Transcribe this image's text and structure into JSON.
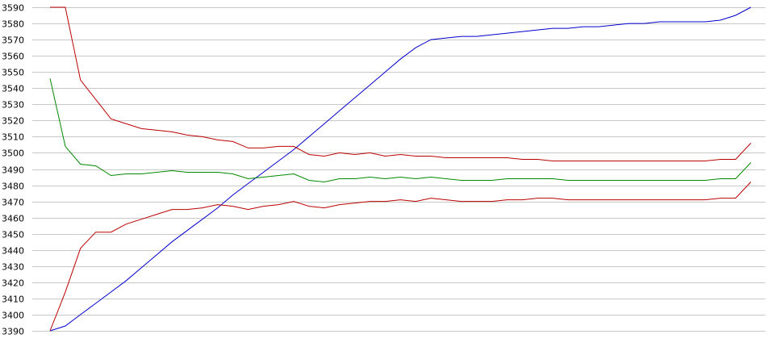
{
  "chart_data": {
    "type": "line",
    "title": "",
    "xlabel": "",
    "ylabel": "",
    "ylim": [
      3390,
      3590
    ],
    "yticks": [
      3390,
      3400,
      3410,
      3420,
      3430,
      3440,
      3450,
      3460,
      3470,
      3480,
      3490,
      3500,
      3510,
      3520,
      3530,
      3540,
      3550,
      3560,
      3570,
      3580,
      3590
    ],
    "grid": true,
    "x": [
      0,
      1,
      2,
      3,
      4,
      5,
      6,
      7,
      8,
      9,
      10,
      11,
      12,
      13,
      14,
      15,
      16,
      17,
      18,
      19,
      20,
      21,
      22,
      23,
      24,
      25,
      26,
      27,
      28,
      29,
      30,
      31,
      32,
      33,
      34,
      35,
      36,
      37,
      38,
      39,
      40,
      41,
      42,
      43,
      44,
      45,
      46
    ],
    "series": [
      {
        "color": "#0000cc",
        "values": [
          3390,
          3393,
          3400,
          3407,
          3414,
          3421,
          3429,
          3437,
          3445,
          3452,
          3459,
          3466,
          3474,
          3481,
          3488,
          3495,
          3502,
          3510,
          3518,
          3526,
          3534,
          3542,
          3550,
          3558,
          3565,
          3570,
          3571,
          3572,
          3572,
          3573,
          3574,
          3575,
          3576,
          3577,
          3577,
          3578,
          3578,
          3579,
          3580,
          3580,
          3581,
          3581,
          3581,
          3581,
          3582,
          3585,
          3590
        ]
      },
      {
        "color": "#bb0000",
        "values": [
          3590,
          3590,
          3545,
          3533,
          3521,
          3518,
          3515,
          3514,
          3513,
          3511,
          3510,
          3508,
          3507,
          3503,
          3503,
          3504,
          3504,
          3499,
          3498,
          3500,
          3499,
          3500,
          3498,
          3499,
          3498,
          3498,
          3497,
          3497,
          3497,
          3497,
          3497,
          3496,
          3496,
          3495,
          3495,
          3495,
          3495,
          3495,
          3495,
          3495,
          3495,
          3495,
          3495,
          3495,
          3496,
          3496,
          3506
        ]
      },
      {
        "color": "#008800",
        "values": [
          3546,
          3504,
          3493,
          3492,
          3486,
          3487,
          3487,
          3488,
          3489,
          3488,
          3488,
          3488,
          3487,
          3484,
          3485,
          3486,
          3487,
          3483,
          3482,
          3484,
          3484,
          3485,
          3484,
          3485,
          3484,
          3485,
          3484,
          3483,
          3483,
          3483,
          3484,
          3484,
          3484,
          3484,
          3483,
          3483,
          3483,
          3483,
          3483,
          3483,
          3483,
          3483,
          3483,
          3483,
          3484,
          3484,
          3494
        ]
      },
      {
        "color": "#bb0000",
        "values": [
          3390,
          3414,
          3441,
          3451,
          3451,
          3456,
          3459,
          3462,
          3465,
          3465,
          3466,
          3468,
          3467,
          3465,
          3467,
          3468,
          3470,
          3467,
          3466,
          3468,
          3469,
          3470,
          3470,
          3471,
          3470,
          3472,
          3471,
          3470,
          3470,
          3470,
          3471,
          3471,
          3472,
          3472,
          3471,
          3471,
          3471,
          3471,
          3471,
          3471,
          3471,
          3471,
          3471,
          3471,
          3472,
          3472,
          3482
        ]
      }
    ]
  }
}
